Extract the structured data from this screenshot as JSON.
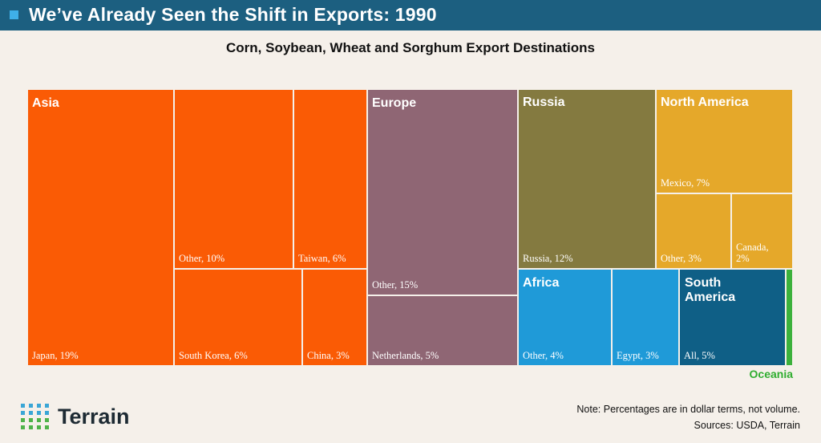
{
  "header": {
    "title": "We’ve Already Seen the Shift in Exports: 1990"
  },
  "chart_data": {
    "type": "treemap",
    "title": "Corn, Soybean, Wheat and Sorghum Export Destinations",
    "unit": "percent of export value (dollar terms)",
    "regions": [
      {
        "name": "Asia",
        "color": "#fa5b05",
        "items": [
          {
            "name": "Japan",
            "value": 19,
            "label": "Japan, 19%"
          },
          {
            "name": "Other",
            "value": 10,
            "label": "Other, 10%"
          },
          {
            "name": "Taiwan",
            "value": 6,
            "label": "Taiwan, 6%"
          },
          {
            "name": "South Korea",
            "value": 6,
            "label": "South Korea, 6%"
          },
          {
            "name": "China",
            "value": 3,
            "label": "China, 3%"
          }
        ]
      },
      {
        "name": "Europe",
        "color": "#8f6674",
        "items": [
          {
            "name": "Other",
            "value": 15,
            "label": "Other, 15%"
          },
          {
            "name": "Netherlands",
            "value": 5,
            "label": "Netherlands, 5%"
          }
        ]
      },
      {
        "name": "Russia",
        "color": "#847a40",
        "items": [
          {
            "name": "Russia",
            "value": 12,
            "label": "Russia, 12%"
          }
        ]
      },
      {
        "name": "North America",
        "color": "#e5a82a",
        "items": [
          {
            "name": "Mexico",
            "value": 7,
            "label": "Mexico, 7%"
          },
          {
            "name": "Other",
            "value": 3,
            "label": "Other, 3%"
          },
          {
            "name": "Canada",
            "value": 2,
            "label": "Canada, 2%"
          }
        ]
      },
      {
        "name": "Africa",
        "color": "#1f9ad8",
        "items": [
          {
            "name": "Other",
            "value": 4,
            "label": "Other, 4%"
          },
          {
            "name": "Egypt",
            "value": 3,
            "label": "Egypt, 3%"
          }
        ]
      },
      {
        "name": "South America",
        "color": "#0f5f86",
        "items": [
          {
            "name": "All",
            "value": 5,
            "label": "All, 5%"
          }
        ]
      },
      {
        "name": "Oceania",
        "color": "#3cb13c",
        "items": [
          {
            "name": "Oceania",
            "value": 0.3
          }
        ]
      }
    ]
  },
  "footer": {
    "logo_text": "Terrain",
    "note": "Note: Percentages are in dollar terms, not volume.",
    "sources": "Sources: USDA, Terrain"
  },
  "colors": {
    "header_bg": "#1c5f80",
    "background": "#f5f0ea"
  }
}
